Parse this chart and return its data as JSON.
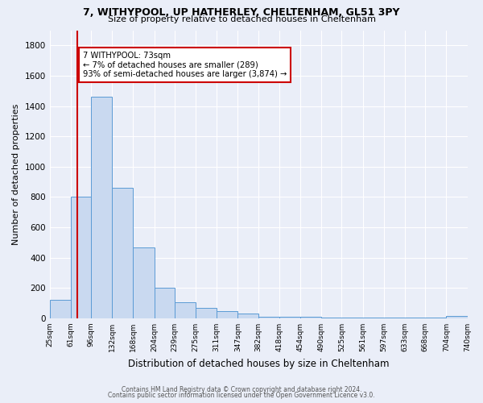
{
  "title1": "7, WITHYPOOL, UP HATHERLEY, CHELTENHAM, GL51 3PY",
  "title2": "Size of property relative to detached houses in Cheltenham",
  "xlabel": "Distribution of detached houses by size in Cheltenham",
  "ylabel": "Number of detached properties",
  "annotation_title": "7 WITHYPOOL: 73sqm",
  "annotation_line1": "← 7% of detached houses are smaller (289)",
  "annotation_line2": "93% of semi-detached houses are larger (3,874) →",
  "footer1": "Contains HM Land Registry data © Crown copyright and database right 2024.",
  "footer2": "Contains public sector information licensed under the Open Government Licence v3.0.",
  "bin_edges": [
    25,
    61,
    96,
    132,
    168,
    204,
    239,
    275,
    311,
    347,
    382,
    418,
    454,
    490,
    525,
    561,
    597,
    633,
    668,
    704,
    740
  ],
  "heights": [
    120,
    800,
    1460,
    860,
    470,
    200,
    105,
    70,
    45,
    30,
    10,
    10,
    10,
    5,
    5,
    5,
    5,
    5,
    5,
    15
  ],
  "bar_color": "#c9d9f0",
  "bar_edgecolor": "#5b9bd5",
  "property_line_x": 73,
  "ylim": [
    0,
    1900
  ],
  "yticks": [
    0,
    200,
    400,
    600,
    800,
    1000,
    1200,
    1400,
    1600,
    1800
  ],
  "bg_color": "#eaeef8",
  "grid_color": "#ffffff",
  "annotation_box_facecolor": "#ffffff",
  "annotation_box_edgecolor": "#cc0000",
  "red_line_color": "#cc0000"
}
